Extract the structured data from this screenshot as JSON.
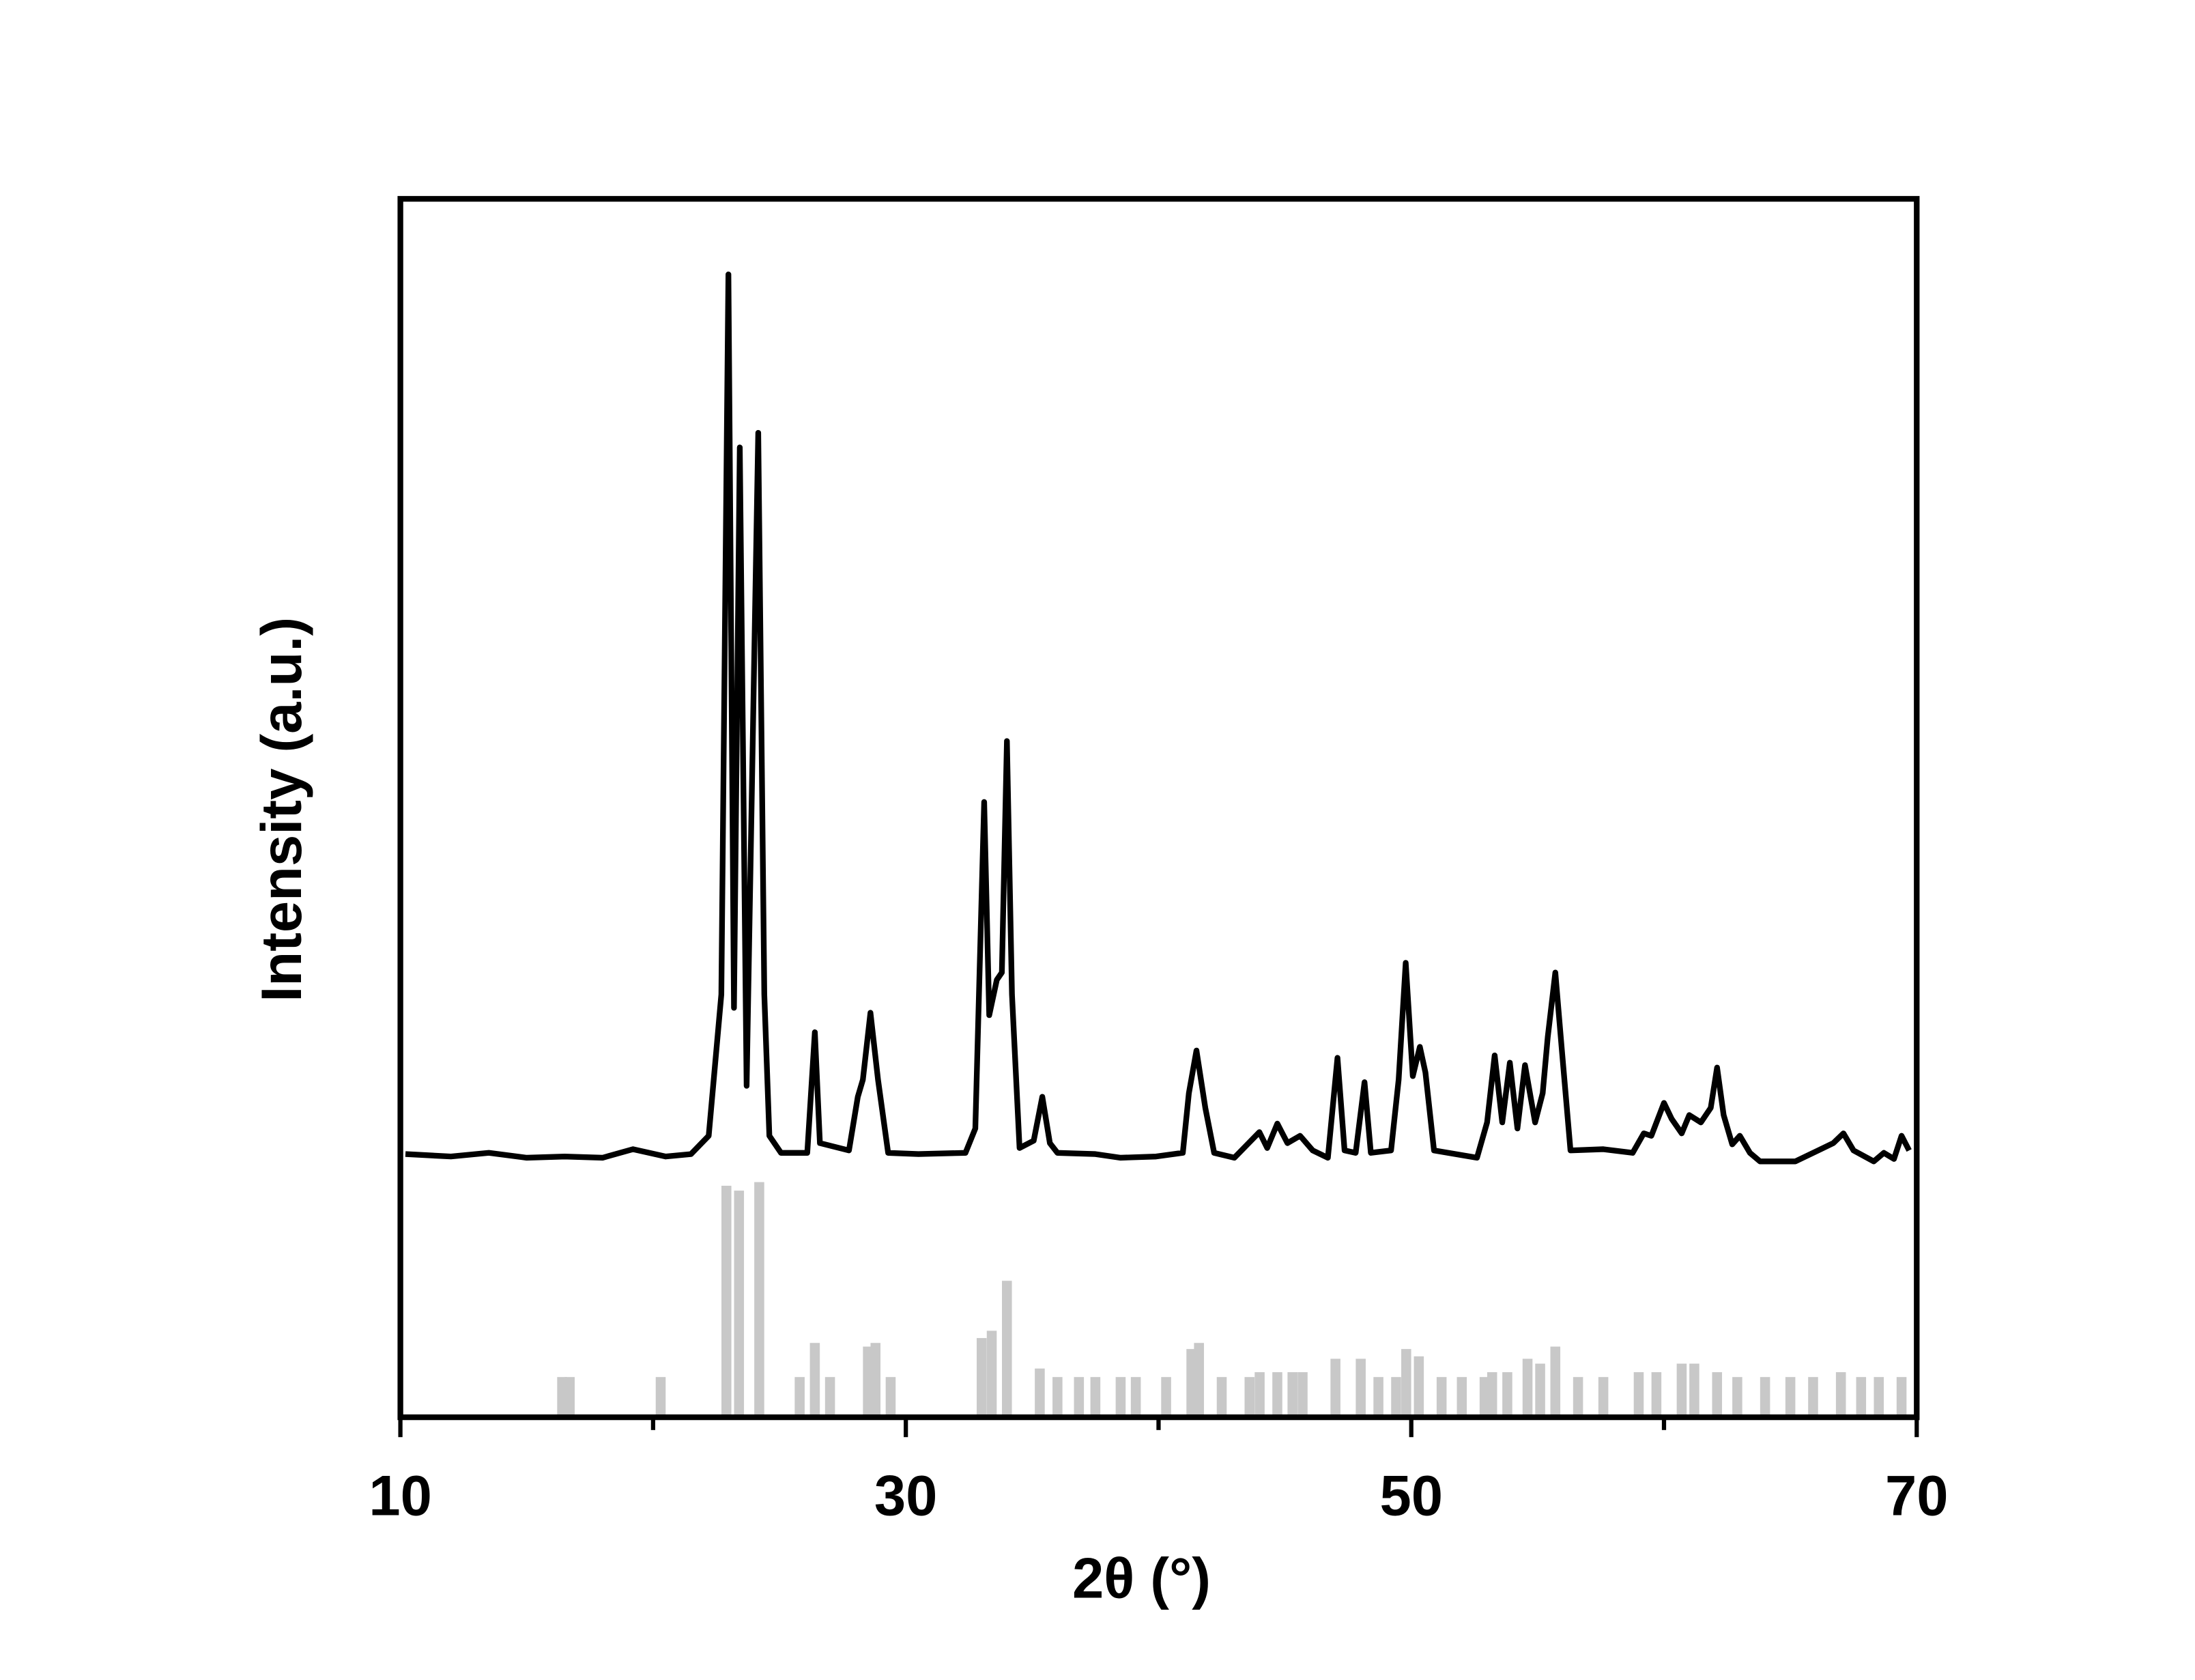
{
  "chart_data": {
    "type": "line",
    "x_label": "2θ (°)",
    "y_label": "Intensity (a.u.)",
    "xlim": [
      10,
      70
    ],
    "ylim": [
      0,
      100
    ],
    "xticks": [
      10,
      30,
      50,
      70
    ],
    "xminor_ticks": [
      20,
      40,
      60
    ],
    "series": [
      {
        "type": "line",
        "color": "#000000",
        "x": [
          10.2,
          12.0,
          13.5,
          15.0,
          16.5,
          18.0,
          19.2,
          20.5,
          21.5,
          22.2,
          22.7,
          22.98,
          23.2,
          23.43,
          23.7,
          24.16,
          24.4,
          24.6,
          25.06,
          26.1,
          26.4,
          26.6,
          27.75,
          28.1,
          28.3,
          28.6,
          28.9,
          29.3,
          30.5,
          32.36,
          32.75,
          33.1,
          33.3,
          33.6,
          33.8,
          34.0,
          34.2,
          34.5,
          35.06,
          35.4,
          35.7,
          36.0,
          37.5,
          38.5,
          39.9,
          40.96,
          41.2,
          41.5,
          41.85,
          42.2,
          43.0,
          43.99,
          44.3,
          44.7,
          45.1,
          45.6,
          46.1,
          46.7,
          47.08,
          47.36,
          47.8,
          48.15,
          48.4,
          49.2,
          49.5,
          49.78,
          50.06,
          50.34,
          50.56,
          50.9,
          52.6,
          53.0,
          53.3,
          53.6,
          53.9,
          54.2,
          54.5,
          54.9,
          55.2,
          55.4,
          55.7,
          55.96,
          56.3,
          57.6,
          58.76,
          59.2,
          59.5,
          60.0,
          60.3,
          60.7,
          61.0,
          61.46,
          61.85,
          62.1,
          62.36,
          62.7,
          63.0,
          63.4,
          63.8,
          65.2,
          66.1,
          66.7,
          67.1,
          67.5,
          68.3,
          68.7,
          69.1,
          69.4,
          69.7
        ],
        "values": [
          21.6,
          21.4,
          21.7,
          21.3,
          21.4,
          21.3,
          22.0,
          21.4,
          21.6,
          23.1,
          34.7,
          93.8,
          33.6,
          79.6,
          27.2,
          80.8,
          34.7,
          23.1,
          21.7,
          21.7,
          31.6,
          22.5,
          21.9,
          26.3,
          27.7,
          33.2,
          27.7,
          21.7,
          21.6,
          21.7,
          23.7,
          50.5,
          33.0,
          35.9,
          36.5,
          55.5,
          34.7,
          22.1,
          22.7,
          26.3,
          22.5,
          21.7,
          21.6,
          21.3,
          21.4,
          21.7,
          26.6,
          30.1,
          25.4,
          21.7,
          21.3,
          23.4,
          22.1,
          24.1,
          22.5,
          23.1,
          21.9,
          21.3,
          29.5,
          21.9,
          21.7,
          27.5,
          21.7,
          21.9,
          27.7,
          37.3,
          28.0,
          30.4,
          28.3,
          21.9,
          21.3,
          24.2,
          29.7,
          24.2,
          29.1,
          23.7,
          28.9,
          24.2,
          26.6,
          31.2,
          36.5,
          30.1,
          21.9,
          22.0,
          21.7,
          23.3,
          23.1,
          25.8,
          24.5,
          23.3,
          24.8,
          24.2,
          25.4,
          28.7,
          24.8,
          22.4,
          23.1,
          21.7,
          21.0,
          21.0,
          21.9,
          22.5,
          23.3,
          21.9,
          21.0,
          21.7,
          21.2,
          23.1,
          21.9
        ]
      },
      {
        "type": "bar",
        "color": "#c8c8c8",
        "x": [
          16.4,
          16.7,
          20.3,
          22.9,
          23.4,
          24.2,
          25.8,
          26.4,
          27.0,
          28.5,
          28.8,
          29.4,
          33.0,
          33.4,
          34.0,
          35.3,
          36.0,
          36.85,
          37.5,
          38.5,
          39.1,
          40.3,
          41.3,
          41.6,
          42.5,
          43.6,
          44.0,
          44.7,
          45.3,
          45.7,
          47.0,
          48.0,
          48.7,
          49.4,
          49.8,
          50.3,
          51.2,
          52.0,
          52.9,
          53.2,
          53.8,
          54.6,
          55.1,
          55.7,
          56.6,
          57.6,
          59.0,
          59.7,
          60.7,
          61.2,
          62.1,
          62.9,
          64.0,
          65.0,
          65.9,
          67.0,
          67.8,
          68.5,
          69.4
        ],
        "values": [
          3.3,
          3.3,
          3.3,
          19.0,
          18.6,
          19.3,
          3.3,
          6.1,
          3.3,
          5.8,
          6.1,
          3.3,
          6.5,
          7.1,
          11.2,
          4.0,
          3.3,
          3.3,
          3.3,
          3.3,
          3.3,
          3.3,
          5.6,
          6.1,
          3.3,
          3.3,
          3.7,
          3.7,
          3.7,
          3.7,
          4.8,
          4.8,
          3.3,
          3.3,
          5.6,
          5.0,
          3.3,
          3.3,
          3.3,
          3.7,
          3.7,
          4.8,
          4.4,
          5.8,
          3.3,
          3.3,
          3.7,
          3.7,
          4.4,
          4.4,
          3.7,
          3.3,
          3.3,
          3.3,
          3.3,
          3.7,
          3.3,
          3.3,
          3.3
        ]
      }
    ]
  }
}
